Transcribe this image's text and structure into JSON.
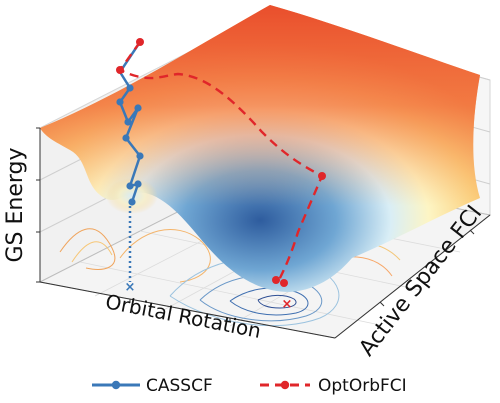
{
  "axes": {
    "z_label": "GS Energy",
    "x_label": "Orbital Rotation",
    "y_label": "Active Space FCI"
  },
  "legend": [
    {
      "label": "CASSCF",
      "color": "#3a78b8",
      "line": "solid"
    },
    {
      "label": "OptOrbFCI",
      "color": "#e0262a",
      "line": "dashed"
    }
  ],
  "colors": {
    "surface_high": "#e8552d",
    "surface_mid": "#fbe9a3",
    "surface_low": "#2e5c9e",
    "casscf": "#3a78b8",
    "optorbfci": "#e0262a"
  }
}
